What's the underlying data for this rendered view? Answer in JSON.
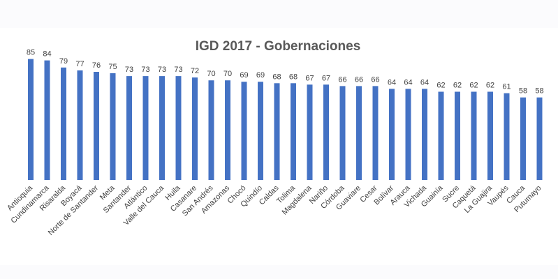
{
  "chart_data": {
    "type": "bar",
    "title": "IGD 2017 - Gobernaciones",
    "xlabel": "",
    "ylabel": "",
    "ylim": [
      0,
      85
    ],
    "grid": false,
    "legend": "none",
    "bar_color": "#4472c4",
    "categories": [
      "Antioquia",
      "Cundinamarca",
      "Risaralda",
      "Boyacá",
      "Norte de Santander",
      "Meta",
      "Santander",
      "Atlántico",
      "Valle del Cauca",
      "Huila",
      "Casanare",
      "San Andrés",
      "Amazonas",
      "Chocó",
      "Quindío",
      "Caldas",
      "Tolima",
      "Magdalena",
      "Nariño",
      "Córdoba",
      "Guaviare",
      "Cesar",
      "Bolívar",
      "Arauca",
      "Vichada",
      "Guainía",
      "Sucre",
      "Caquetá",
      "La Guajira",
      "Vaupés",
      "Cauca",
      "Putumayo"
    ],
    "values": [
      85,
      84,
      79,
      77,
      76,
      75,
      73,
      73,
      73,
      73,
      72,
      70,
      70,
      69,
      69,
      68,
      68,
      67,
      67,
      66,
      66,
      66,
      64,
      64,
      64,
      62,
      62,
      62,
      62,
      61,
      58,
      58
    ]
  }
}
